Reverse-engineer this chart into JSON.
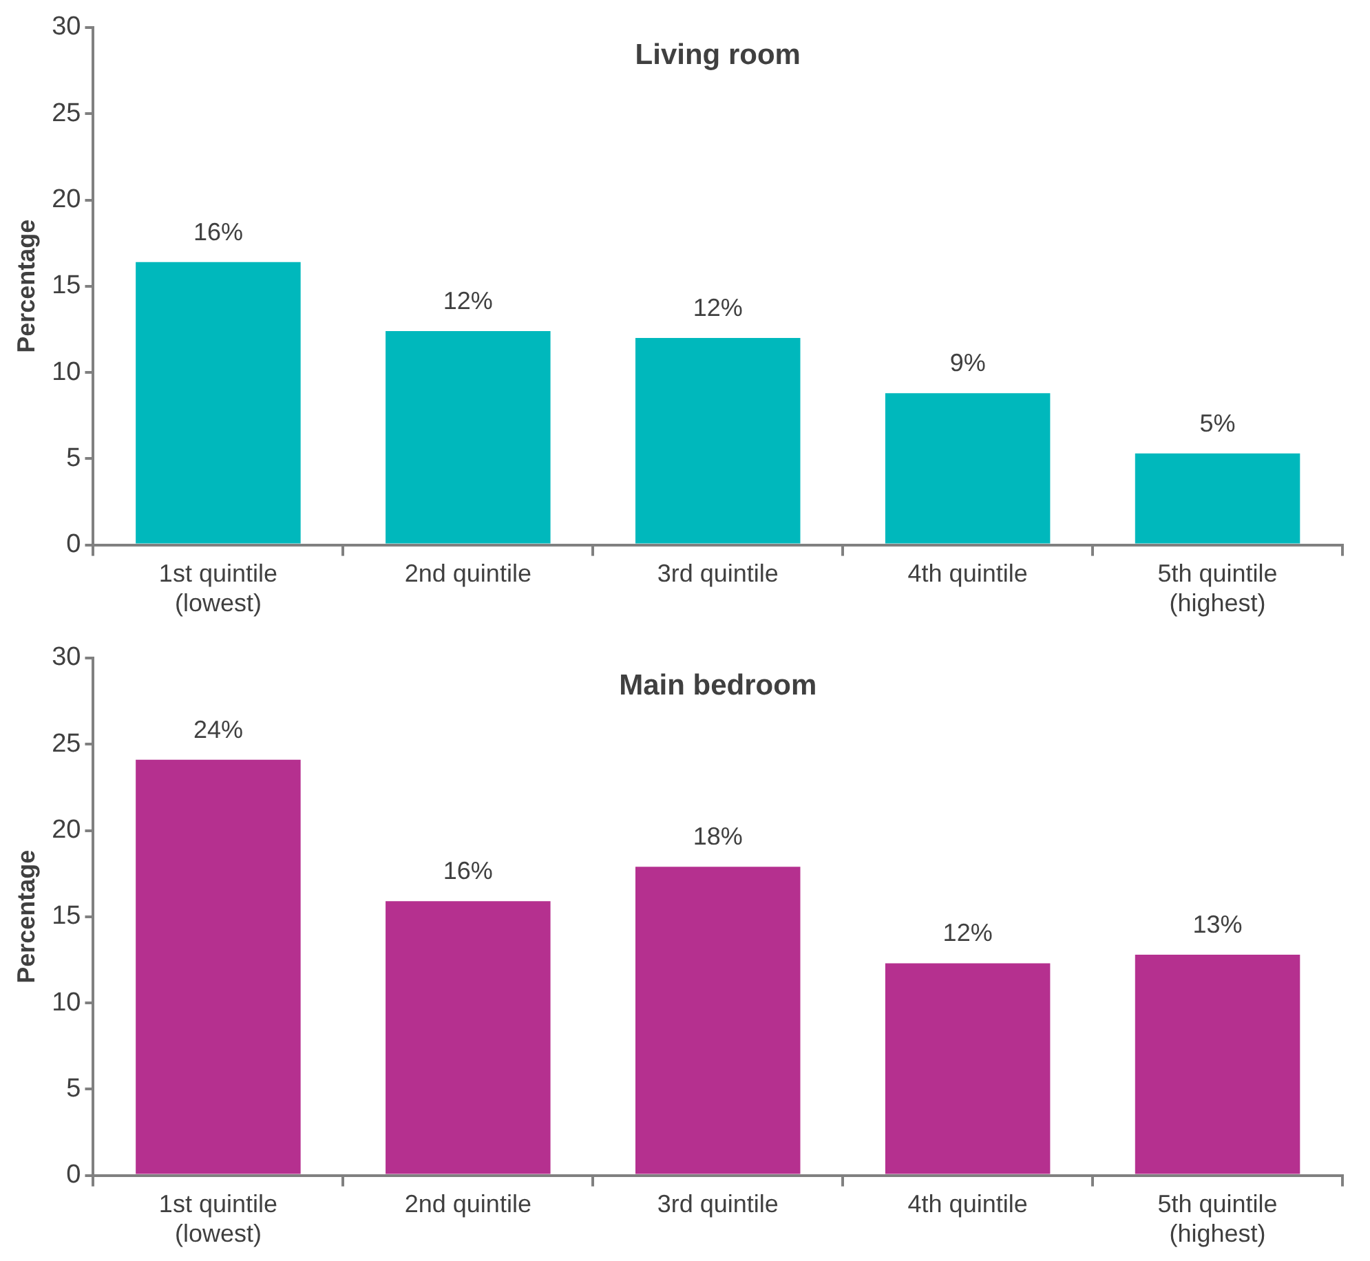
{
  "chart_data": [
    {
      "type": "bar",
      "title": "Living room",
      "ylabel": "Percentage",
      "categories": [
        "1st quintile\n(lowest)",
        "2nd quintile",
        "3rd quintile",
        "4th quintile",
        "5th quintile\n(highest)"
      ],
      "values": [
        16.4,
        12.4,
        12.0,
        8.8,
        5.3
      ],
      "color": "#00b8bc",
      "value_labels": [
        "16%",
        "12%",
        "12%",
        "9%",
        "5%"
      ],
      "ylim": [
        0,
        30
      ],
      "yticks": [
        0,
        5,
        10,
        15,
        20,
        25,
        30
      ],
      "grid": false,
      "legend": false
    },
    {
      "type": "bar",
      "title": "Main bedroom",
      "ylabel": "Percentage",
      "categories": [
        "1st quintile\n(lowest)",
        "2nd quintile",
        "3rd quintile",
        "4th quintile",
        "5th quintile\n(highest)"
      ],
      "values": [
        24.1,
        15.9,
        17.9,
        12.3,
        12.8
      ],
      "color": "#b5308f",
      "value_labels": [
        "24%",
        "16%",
        "18%",
        "12%",
        "13%"
      ],
      "ylim": [
        0,
        30
      ],
      "yticks": [
        0,
        5,
        10,
        15,
        20,
        25,
        30
      ],
      "grid": false,
      "legend": false
    }
  ]
}
